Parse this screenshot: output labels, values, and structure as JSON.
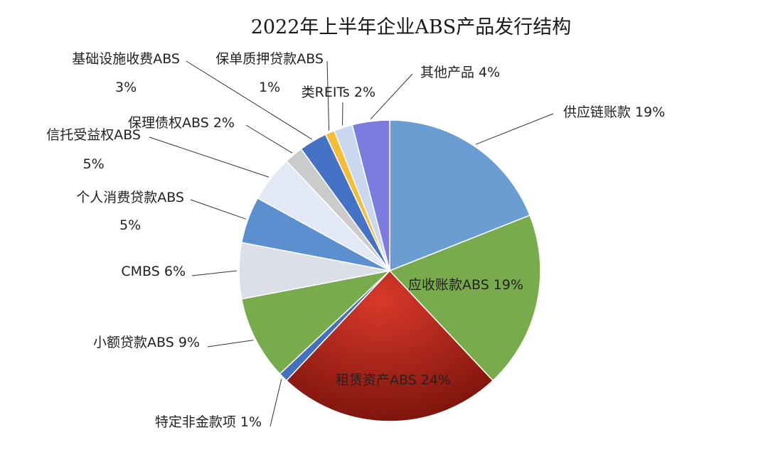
{
  "chart_data": {
    "type": "pie",
    "title": "2022年上半年企业ABS产品发行结构",
    "slices": [
      {
        "name": "供应链账款",
        "value": 19,
        "label": "供应链账款 19%",
        "color": "#6a9ed3"
      },
      {
        "name": "应收账款ABS",
        "value": 19,
        "label": "应收账款ABS 19%",
        "color": "#78ab4c"
      },
      {
        "name": "租赁资产ABS",
        "value": 24,
        "label": "租赁资产ABS 24%",
        "color": "#b82a1c"
      },
      {
        "name": "特定非金款项",
        "value": 1,
        "label": "特定非金款项 1%",
        "color": "#4470c4"
      },
      {
        "name": "小额贷款ABS",
        "value": 9,
        "label": "小额贷款ABS 9%",
        "color": "#78ab4c"
      },
      {
        "name": "CMBS",
        "value": 6,
        "label": "CMBS 6%",
        "color": "#dcdee8"
      },
      {
        "name": "个人消费贷款ABS",
        "value": 5,
        "label": "个人消费贷款ABS",
        "label2": "5%",
        "color": "#5b8fd0"
      },
      {
        "name": "信托受益权ABS",
        "value": 5,
        "label": "信托受益权ABS",
        "label2": "5%",
        "color": "#e3e9f4"
      },
      {
        "name": "保理债权ABS",
        "value": 2,
        "label": "保理债权ABS 2%",
        "color": "#cbcbcb"
      },
      {
        "name": "基础设施收费ABS",
        "value": 3,
        "label": "基础设施收费ABS",
        "label2": "3%",
        "color": "#4472c4"
      },
      {
        "name": "保单质押贷款ABS",
        "value": 1,
        "label": "保单质押贷款ABS",
        "label2": "1%",
        "color": "#f4bd36"
      },
      {
        "name": "类REITs",
        "value": 2,
        "label": "类REITs 2%",
        "color": "#c9d8ee"
      },
      {
        "name": "其他产品",
        "value": 4,
        "label": "其他产品 4%",
        "color": "#7b7be0"
      }
    ],
    "start_angle": "12 o'clock",
    "direction": "clockwise",
    "legend": "none"
  }
}
